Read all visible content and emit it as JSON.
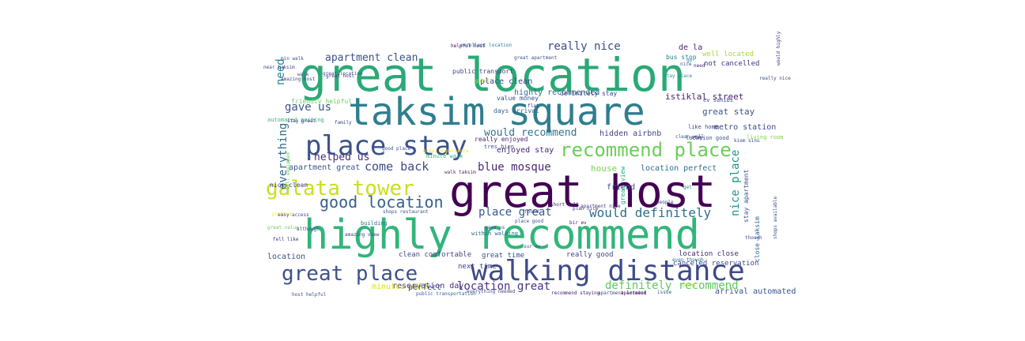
{
  "wordcloud": {
    "words": [
      {
        "text": "great location",
        "color": "#2aa977"
      },
      {
        "text": "taksim square",
        "color": "#2f7e8e"
      },
      {
        "text": "great host",
        "color": "#440154"
      },
      {
        "text": "highly recommend",
        "color": "#31b57b"
      },
      {
        "text": "place stay",
        "color": "#3b528b"
      },
      {
        "text": "walking distance",
        "color": "#3e4a89"
      },
      {
        "text": "recommend place",
        "color": "#6cce59"
      },
      {
        "text": "galata tower",
        "color": "#c7e020"
      },
      {
        "text": "great place",
        "color": "#3b528b"
      },
      {
        "text": "good location",
        "color": "#35608d"
      },
      {
        "text": "would definitely",
        "color": "#2c718e"
      },
      {
        "text": "apartment clean",
        "color": "#3b528b"
      },
      {
        "text": "really nice",
        "color": "#3e4a89"
      },
      {
        "text": "come back",
        "color": "#3e4a89"
      },
      {
        "text": "blue mosque",
        "color": "#482878"
      },
      {
        "text": "location great",
        "color": "#46337e"
      },
      {
        "text": "definitely recommend",
        "color": "#5ec962"
      },
      {
        "text": "place great",
        "color": "#38588c"
      },
      {
        "text": "helped us",
        "color": "#472d7b"
      },
      {
        "text": "gave us",
        "color": "#3b528b"
      },
      {
        "text": "everything",
        "color": "#31688e"
      },
      {
        "text": "need",
        "color": "#26828e"
      },
      {
        "text": "would recommend",
        "color": "#2a788e"
      },
      {
        "text": "istiklal street",
        "color": "#482173"
      },
      {
        "text": "great stay",
        "color": "#3b528b"
      },
      {
        "text": "metro station",
        "color": "#3e4a89"
      },
      {
        "text": "highly recommended",
        "color": "#2f6c8e"
      },
      {
        "text": "definitely stay",
        "color": "#404688"
      },
      {
        "text": "enjoyed stay",
        "color": "#482475"
      },
      {
        "text": "hidden airbnb",
        "color": "#414487"
      },
      {
        "text": "location perfect",
        "color": "#2d708e"
      },
      {
        "text": "house",
        "color": "#7ad151"
      },
      {
        "text": "friend",
        "color": "#3b528b"
      },
      {
        "text": "nice place",
        "color": "#21918c"
      },
      {
        "text": "apartment great",
        "color": "#38588c"
      },
      {
        "text": "days arrival",
        "color": "#33638d"
      },
      {
        "text": "value money",
        "color": "#3b528b"
      },
      {
        "text": "public transport",
        "color": "#404688"
      },
      {
        "text": "place clean",
        "color": "#3e4a89"
      },
      {
        "text": "de la",
        "color": "#481f70"
      },
      {
        "text": "well located",
        "color": "#a5db36"
      },
      {
        "text": "not cancelled",
        "color": "#46327e"
      },
      {
        "text": "reservation day",
        "color": "#472d7b"
      },
      {
        "text": "minutes walk",
        "color": "#d8e219"
      },
      {
        "text": "perfect",
        "color": "#3e4a89"
      },
      {
        "text": "location",
        "color": "#3b528b"
      },
      {
        "text": "clean comfortable",
        "color": "#3e4a89"
      },
      {
        "text": "great time",
        "color": "#3b528b"
      },
      {
        "text": "really good",
        "color": "#404688"
      },
      {
        "text": "location close",
        "color": "#482878"
      },
      {
        "text": "arrival automated",
        "color": "#3b528b"
      },
      {
        "text": "nice clean",
        "color": "#443983"
      },
      {
        "text": "next time",
        "color": "#414487"
      },
      {
        "text": "canceled reservation",
        "color": "#3e4a89"
      },
      {
        "text": "close taksim",
        "color": "#33638d"
      },
      {
        "text": "stay apartment",
        "color": "#3b528b"
      },
      {
        "text": "really enjoyed",
        "color": "#481f70"
      },
      {
        "text": "automated posting",
        "color": "#35b779"
      },
      {
        "text": "friendly helpful",
        "color": "#6ece58"
      },
      {
        "text": "great view",
        "color": "#22a884"
      },
      {
        "text": "living room",
        "color": "#86d549"
      },
      {
        "text": "location good",
        "color": "#3b528b"
      },
      {
        "text": "ev sahibi",
        "color": "#3e4a89"
      },
      {
        "text": "like home",
        "color": "#404688"
      },
      {
        "text": "building",
        "color": "#2c718e"
      },
      {
        "text": "problem",
        "color": "#fde725"
      },
      {
        "text": "short walk",
        "color": "#482878"
      },
      {
        "text": "bus stop",
        "color": "#26828e"
      },
      {
        "text": "guest",
        "color": "#bddf26"
      },
      {
        "text": "helpful host",
        "color": "#440154"
      },
      {
        "text": "excellent location",
        "color": "#2a788e"
      },
      {
        "text": "great apartment",
        "color": "#3b528b"
      },
      {
        "text": "within walking",
        "color": "#31688e"
      },
      {
        "text": "fell like",
        "color": "#46327e"
      },
      {
        "text": "great value",
        "color": "#6ece58"
      },
      {
        "text": "amazing view",
        "color": "#414487"
      },
      {
        "text": "host helpful",
        "color": "#3b528b"
      },
      {
        "text": "public transportation",
        "color": "#35608d"
      },
      {
        "text": "walk taksim",
        "color": "#482878"
      },
      {
        "text": "recommend staying",
        "color": "#482173"
      },
      {
        "text": "apartment located",
        "color": "#3e4a89"
      },
      {
        "text": "even though",
        "color": "#2a788e"
      },
      {
        "text": "shops restaurant",
        "color": "#3b528b"
      },
      {
        "text": "minute walk",
        "color": "#35b779"
      },
      {
        "text": "easy access",
        "color": "#3e4a89"
      },
      {
        "text": "good place",
        "color": "#3b528b"
      },
      {
        "text": "amazing host",
        "color": "#404688"
      },
      {
        "text": "walk",
        "color": "#3b528b"
      },
      {
        "text": "family",
        "color": "#3e4a89"
      },
      {
        "text": "people",
        "color": "#414487"
      },
      {
        "text": "stay place",
        "color": "#21918c"
      },
      {
        "text": "need",
        "color": "#482878"
      },
      {
        "text": "great experience",
        "color": "#fde725"
      },
      {
        "text": "issue",
        "color": "#3b528b"
      },
      {
        "text": "apartment",
        "color": "#440154"
      },
      {
        "text": "everything needed",
        "color": "#3e4a89"
      },
      {
        "text": "tres bien",
        "color": "#3b528b"
      },
      {
        "text": "flat",
        "color": "#46327e"
      },
      {
        "text": "stay great",
        "color": "#482878"
      },
      {
        "text": "well equipped",
        "color": "#5ec962"
      },
      {
        "text": "great host",
        "color": "#46327e"
      },
      {
        "text": "gave us",
        "color": "#3e4a89"
      },
      {
        "text": "found",
        "color": "#3b528b"
      },
      {
        "text": "sur ev",
        "color": "#3b528b"
      },
      {
        "text": "plan nice",
        "color": "#46327e"
      },
      {
        "text": "place good",
        "color": "#3b528b"
      },
      {
        "text": "apartment nice",
        "color": "#414487"
      },
      {
        "text": "bir ev",
        "color": "#482173"
      },
      {
        "text": "clean well",
        "color": "#3b528b"
      },
      {
        "text": "kiem sinu",
        "color": "#3e4a89"
      },
      {
        "text": "though",
        "color": "#3b528b"
      },
      {
        "text": "although",
        "color": "#3e4a89"
      },
      {
        "text": "great location",
        "color": "#3b528b"
      },
      {
        "text": "would highly",
        "color": "#46327e"
      },
      {
        "text": "really nice",
        "color": "#3e4a89"
      },
      {
        "text": "shops available",
        "color": "#3b528b"
      },
      {
        "text": "quiet",
        "color": "#bddf26"
      },
      {
        "text": "get",
        "color": "#21918c"
      },
      {
        "text": "nice",
        "color": "#3b528b"
      },
      {
        "text": "near taksim",
        "color": "#3e4a89"
      },
      {
        "text": "min walk",
        "color": "#3b528b"
      },
      {
        "text": "go",
        "color": "#26828e"
      },
      {
        "text": "stay",
        "color": "#482878"
      }
    ]
  }
}
